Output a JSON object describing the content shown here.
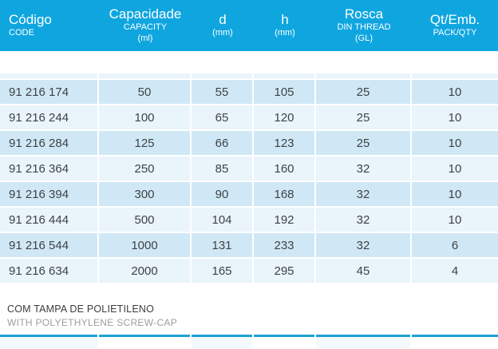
{
  "table": {
    "columns": [
      {
        "label": "Código",
        "subs": [
          "CODE"
        ]
      },
      {
        "label": "Capacidade",
        "subs": [
          "CAPACITY",
          "(ml)"
        ]
      },
      {
        "label": "d",
        "subs": [
          "(mm)"
        ]
      },
      {
        "label": "h",
        "subs": [
          "(mm)"
        ]
      },
      {
        "label": "Rosca",
        "subs": [
          "DIN THREAD",
          "(GL)"
        ]
      },
      {
        "label": "Qt/Emb.",
        "subs": [
          "PACK/QTY"
        ]
      }
    ],
    "rows": [
      [
        "91 216 174",
        "50",
        "55",
        "105",
        "25",
        "10"
      ],
      [
        "91 216 244",
        "100",
        "65",
        "120",
        "25",
        "10"
      ],
      [
        "91 216 284",
        "125",
        "66",
        "123",
        "25",
        "10"
      ],
      [
        "91 216 364",
        "250",
        "85",
        "160",
        "32",
        "10"
      ],
      [
        "91 216 394",
        "300",
        "90",
        "168",
        "32",
        "10"
      ],
      [
        "91 216 444",
        "500",
        "104",
        "192",
        "32",
        "10"
      ],
      [
        "91 216 544",
        "1000",
        "131",
        "233",
        "32",
        "6"
      ],
      [
        "91 216 634",
        "2000",
        "165",
        "295",
        "45",
        "4"
      ]
    ]
  },
  "footer": {
    "note_pt": "COM TAMPA DE POLIETILENO",
    "note_en": "WITH POLYETHYLENE SCREW-CAP"
  },
  "colors": {
    "header_bg": "#0FA6E0",
    "row_dark": "#D0E8F6",
    "row_light": "#E9F4FB",
    "rule": "#1CA2D4",
    "row_text": "#3F4245",
    "note_pt_text": "#3A3C3E",
    "note_en_text": "#9A9EA1"
  }
}
